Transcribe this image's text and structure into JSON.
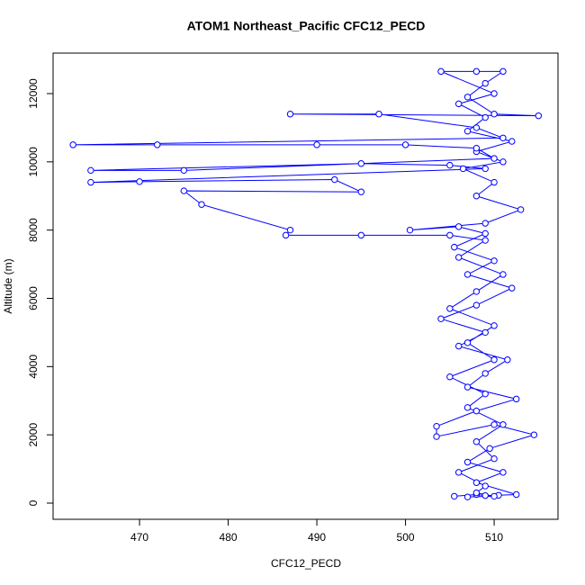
{
  "chart_data": {
    "type": "line",
    "title": "ATOM1 Northeast_Pacific CFC12_PECD",
    "x_label": "CFC12_PECD",
    "y_label": "Altitude (m)",
    "color": "#0000ff",
    "xlim": [
      460.25,
      517.2
    ],
    "ylim": [
      -475,
      13187
    ],
    "xticks": [
      470,
      480,
      490,
      500,
      510
    ],
    "yticks": [
      0,
      2000,
      4000,
      6000,
      8000,
      10000,
      12000
    ],
    "x": [
      505.5,
      508,
      509,
      510.5,
      512.5,
      508,
      511,
      507,
      509.5,
      514.5,
      510,
      503.5,
      503.5,
      508,
      512.5,
      507,
      509,
      511.5,
      506,
      509,
      504,
      508,
      512,
      507,
      510,
      505.5,
      509,
      506,
      500.5,
      509,
      513,
      508,
      510,
      506.5,
      511,
      508,
      512,
      507,
      509,
      506,
      510,
      504,
      508,
      511,
      509,
      507,
      510,
      515,
      487,
      497,
      508,
      511,
      462.5,
      472,
      490,
      500,
      508,
      510,
      475,
      464.5,
      495,
      505,
      509,
      464.5,
      470,
      492,
      495,
      475,
      477,
      487,
      486.5,
      495,
      505,
      509,
      506,
      511,
      508,
      505,
      510,
      507,
      510,
      505,
      509,
      507,
      511,
      508,
      510,
      506,
      509,
      508,
      510,
      507
    ],
    "values": [
      200,
      250,
      220,
      230,
      250,
      600,
      900,
      1200,
      1600,
      2000,
      2300,
      1950,
      2250,
      2700,
      3050,
      3400,
      3800,
      4200,
      4600,
      5000,
      5400,
      5800,
      6300,
      6700,
      7100,
      7500,
      7900,
      8100,
      8000,
      8200,
      8600,
      9000,
      9400,
      9800,
      10000,
      10300,
      10600,
      10900,
      11300,
      11700,
      12000,
      12650,
      12650,
      12650,
      12300,
      11900,
      11400,
      11350,
      11400,
      11400,
      11000,
      10700,
      10500,
      10500,
      10500,
      10500,
      10400,
      10100,
      9750,
      9750,
      9950,
      9900,
      9800,
      9400,
      9420,
      9480,
      9120,
      9150,
      8750,
      8000,
      7850,
      7850,
      7850,
      7700,
      7200,
      6700,
      6200,
      5700,
      5200,
      4700,
      4200,
      3700,
      3200,
      2800,
      2300,
      1800,
      1300,
      900,
      500,
      300,
      200,
      180
    ]
  }
}
